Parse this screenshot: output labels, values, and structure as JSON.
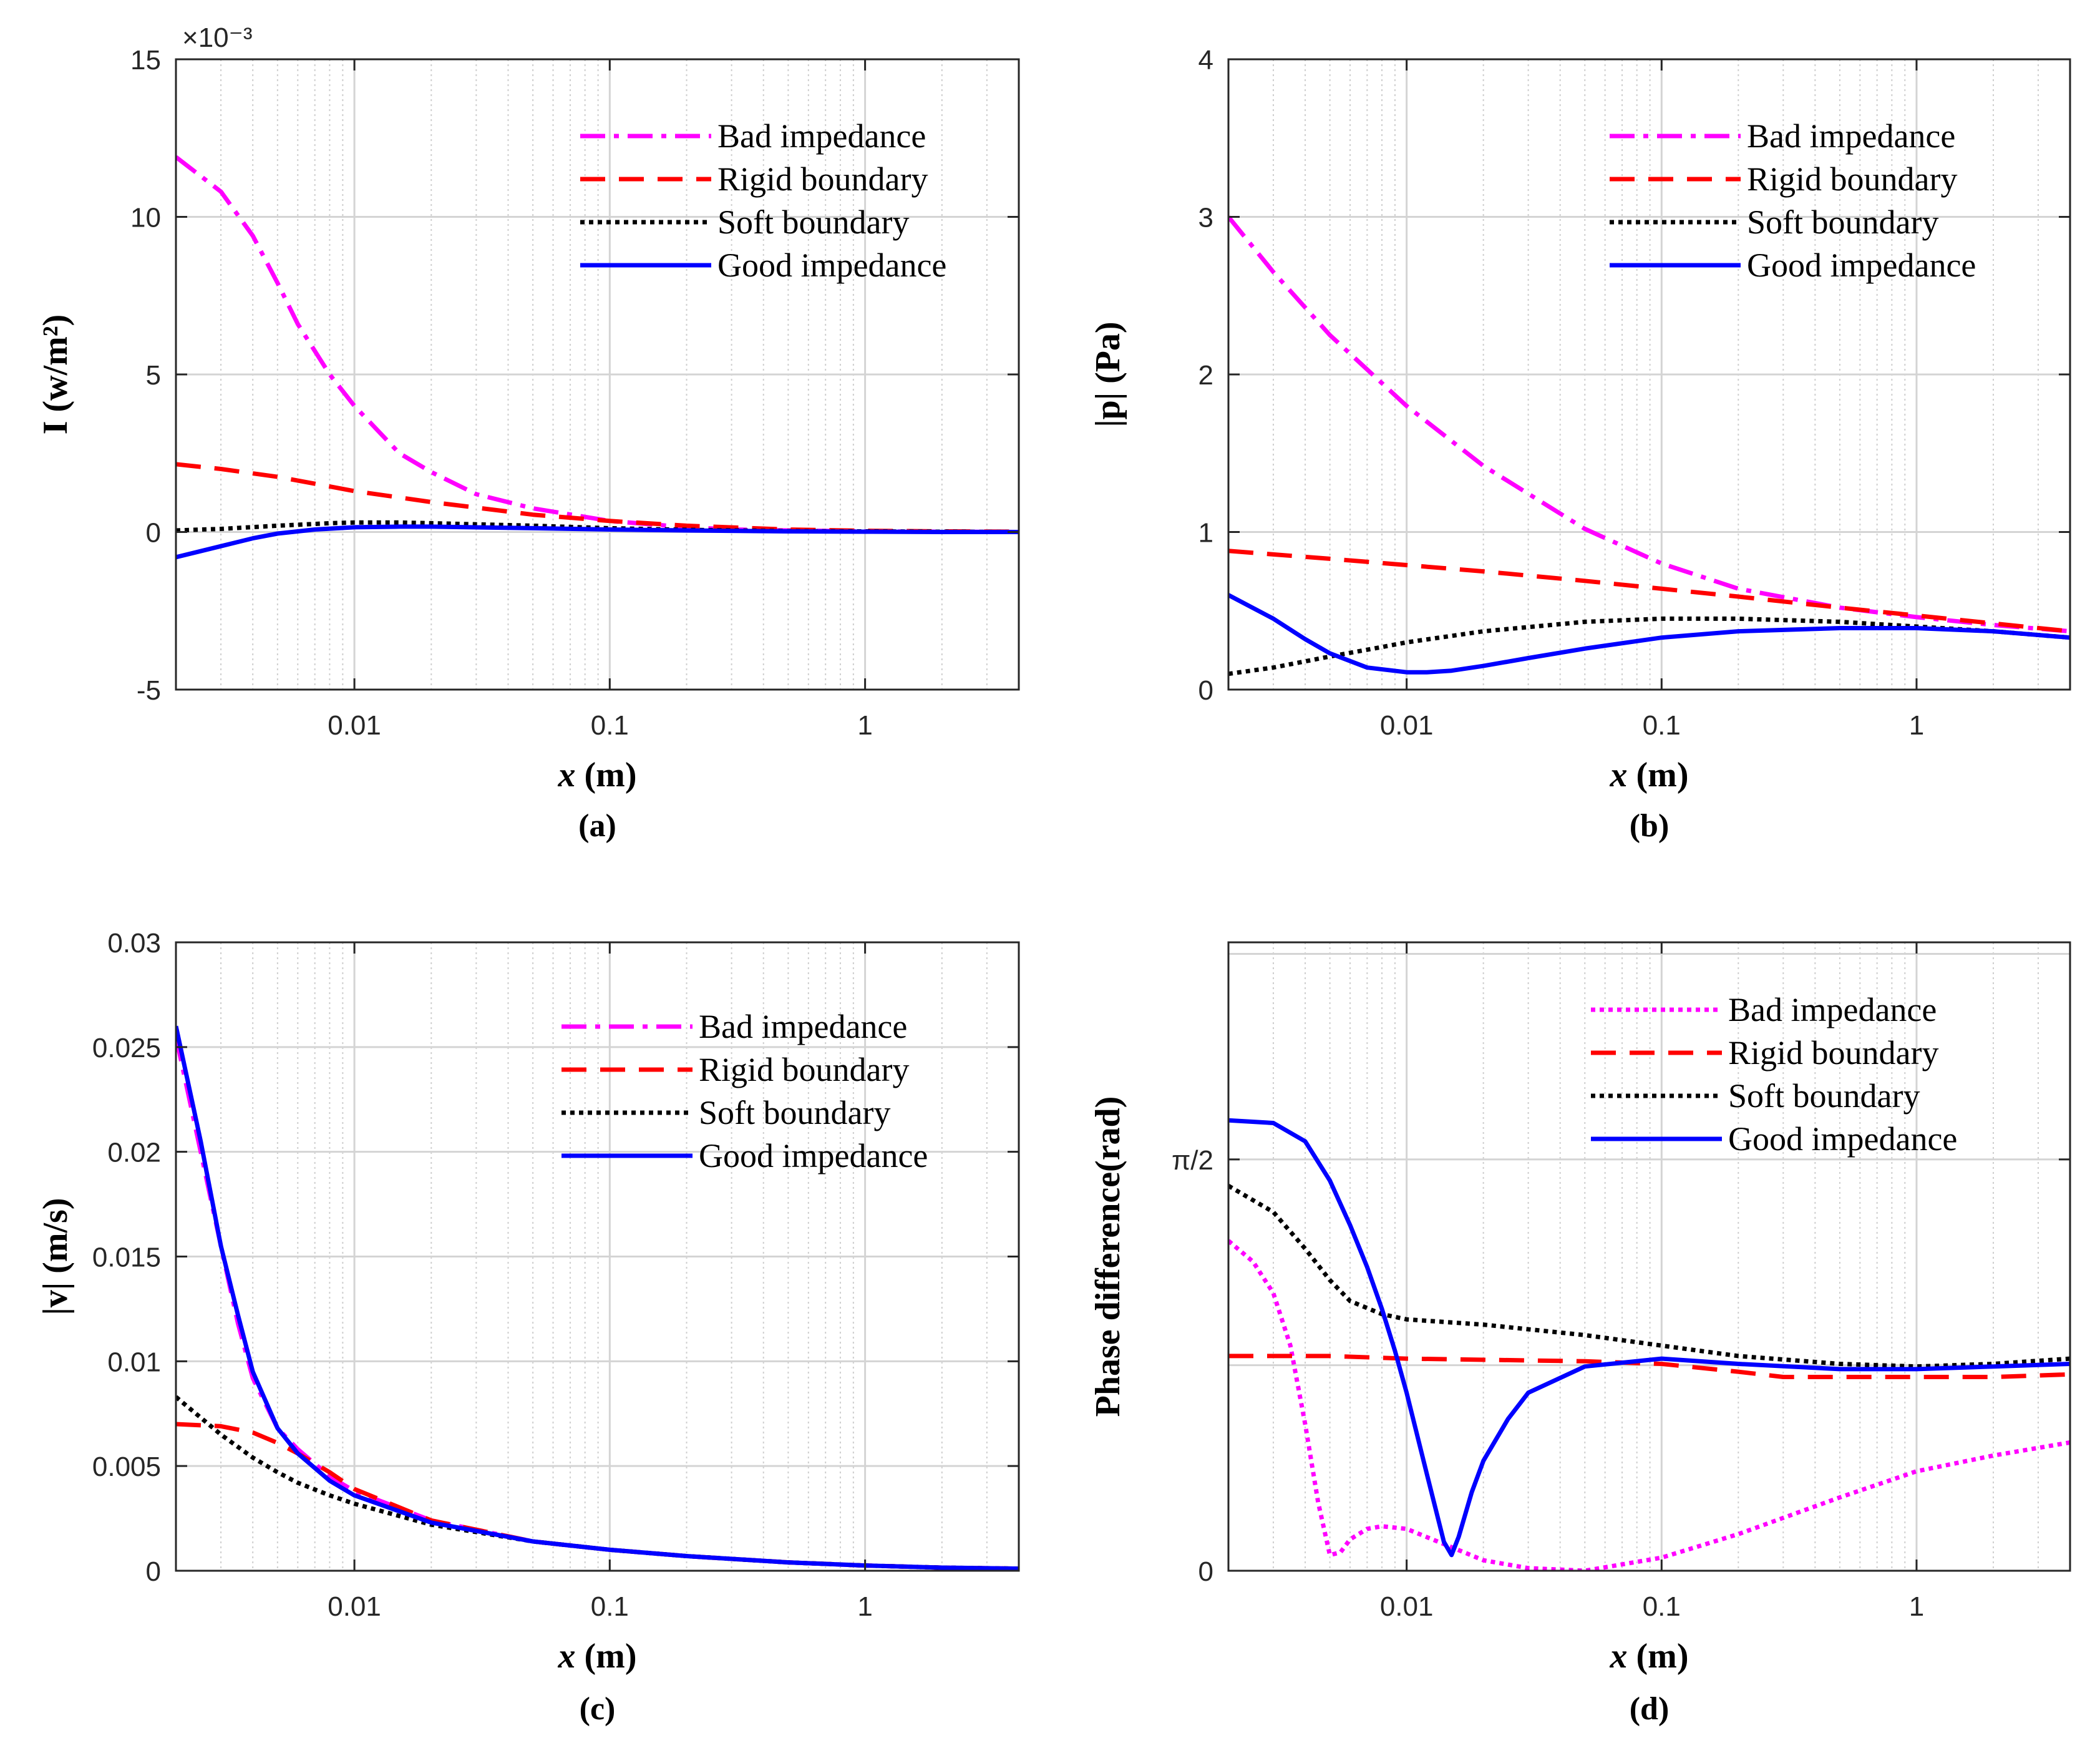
{
  "chart_data": [
    {
      "id": "a",
      "type": "line",
      "caption": "(a)",
      "xscale": "log",
      "xlim": [
        0.002,
        4
      ],
      "ylim": [
        -5,
        15
      ],
      "yticks": [
        -5,
        0,
        5,
        10,
        15
      ],
      "ytick_labels": [
        "-5",
        "0",
        "5",
        "10",
        "15"
      ],
      "xticks": [
        0.01,
        0.1,
        1
      ],
      "xtick_labels": [
        "0.01",
        "0.1",
        "1"
      ],
      "exponent_label": "×10⁻³",
      "xlabel_var": "x",
      "xlabel_unit": " (m)",
      "ylabel": "I (w/m²)",
      "legend_position": "top-right",
      "series": [
        {
          "name": "Bad impedance",
          "color": "#ff00ff",
          "style": "dashdot",
          "x": [
            0.002,
            0.003,
            0.004,
            0.005,
            0.006,
            0.008,
            0.01,
            0.015,
            0.02,
            0.03,
            0.05,
            0.1,
            0.2,
            0.3,
            0.5,
            1,
            2,
            4
          ],
          "y": [
            11.9,
            10.8,
            9.4,
            7.9,
            6.6,
            5.0,
            4.0,
            2.5,
            1.9,
            1.2,
            0.75,
            0.35,
            0.15,
            0.08,
            0.05,
            0.02,
            0.01,
            0.0
          ]
        },
        {
          "name": "Rigid boundary",
          "color": "#ff0000",
          "style": "dashed",
          "x": [
            0.002,
            0.003,
            0.005,
            0.01,
            0.02,
            0.05,
            0.1,
            0.2,
            0.5,
            1,
            2,
            4
          ],
          "y": [
            2.15,
            2.0,
            1.75,
            1.3,
            0.95,
            0.55,
            0.35,
            0.2,
            0.08,
            0.04,
            0.02,
            0.01
          ]
        },
        {
          "name": "Soft boundary",
          "color": "#000000",
          "style": "dotted",
          "x": [
            0.002,
            0.003,
            0.005,
            0.008,
            0.01,
            0.015,
            0.02,
            0.05,
            0.1,
            0.2,
            0.5,
            1,
            2,
            4
          ],
          "y": [
            0.05,
            0.1,
            0.2,
            0.28,
            0.3,
            0.3,
            0.28,
            0.2,
            0.12,
            0.07,
            0.03,
            0.02,
            0.01,
            0.0
          ]
        },
        {
          "name": "Good impedance",
          "color": "#0000ff",
          "style": "solid",
          "x": [
            0.002,
            0.003,
            0.004,
            0.005,
            0.007,
            0.01,
            0.015,
            0.02,
            0.05,
            0.1,
            0.2,
            0.5,
            1,
            2,
            4
          ],
          "y": [
            -0.8,
            -0.45,
            -0.2,
            -0.05,
            0.08,
            0.15,
            0.17,
            0.17,
            0.12,
            0.08,
            0.05,
            0.02,
            0.01,
            0.0,
            0.0
          ]
        }
      ]
    },
    {
      "id": "b",
      "type": "line",
      "caption": "(b)",
      "xscale": "log",
      "xlim": [
        0.002,
        4
      ],
      "ylim": [
        0,
        4
      ],
      "yticks": [
        0,
        1,
        2,
        3,
        4
      ],
      "ytick_labels": [
        "0",
        "1",
        "2",
        "3",
        "4"
      ],
      "xticks": [
        0.01,
        0.1,
        1
      ],
      "xtick_labels": [
        "0.01",
        "0.1",
        "1"
      ],
      "xlabel_var": "x",
      "xlabel_unit": " (m)",
      "ylabel": "|p| (Pa)",
      "legend_position": "top-right",
      "series": [
        {
          "name": "Bad impedance",
          "color": "#ff00ff",
          "style": "dashdot",
          "x": [
            0.002,
            0.003,
            0.005,
            0.01,
            0.02,
            0.05,
            0.1,
            0.2,
            0.5,
            1,
            2,
            4
          ],
          "y": [
            3.0,
            2.65,
            2.25,
            1.8,
            1.42,
            1.02,
            0.8,
            0.64,
            0.52,
            0.46,
            0.41,
            0.37
          ]
        },
        {
          "name": "Rigid boundary",
          "color": "#ff0000",
          "style": "dashed",
          "x": [
            0.002,
            0.005,
            0.01,
            0.02,
            0.05,
            0.1,
            0.2,
            0.5,
            1,
            2,
            4
          ],
          "y": [
            0.88,
            0.83,
            0.79,
            0.75,
            0.69,
            0.64,
            0.59,
            0.52,
            0.47,
            0.42,
            0.37
          ]
        },
        {
          "name": "Soft boundary",
          "color": "#000000",
          "style": "dotted",
          "x": [
            0.002,
            0.003,
            0.005,
            0.008,
            0.01,
            0.02,
            0.05,
            0.1,
            0.2,
            0.5,
            1,
            2,
            4
          ],
          "y": [
            0.1,
            0.14,
            0.21,
            0.27,
            0.3,
            0.37,
            0.43,
            0.45,
            0.45,
            0.43,
            0.4,
            0.37,
            0.33
          ]
        },
        {
          "name": "Good impedance",
          "color": "#0000ff",
          "style": "solid",
          "x": [
            0.002,
            0.003,
            0.004,
            0.005,
            0.007,
            0.01,
            0.012,
            0.015,
            0.02,
            0.03,
            0.05,
            0.1,
            0.2,
            0.5,
            1,
            2,
            4
          ],
          "y": [
            0.6,
            0.45,
            0.32,
            0.23,
            0.14,
            0.11,
            0.11,
            0.12,
            0.15,
            0.2,
            0.26,
            0.33,
            0.37,
            0.39,
            0.39,
            0.37,
            0.33
          ]
        }
      ]
    },
    {
      "id": "c",
      "type": "line",
      "caption": "(c)",
      "xscale": "log",
      "xlim": [
        0.002,
        4
      ],
      "ylim": [
        0,
        0.03
      ],
      "yticks": [
        0,
        0.005,
        0.01,
        0.015,
        0.02,
        0.025,
        0.03
      ],
      "ytick_labels": [
        "0",
        "0.005",
        "0.01",
        "0.015",
        "0.02",
        "0.025",
        "0.03"
      ],
      "xticks": [
        0.01,
        0.1,
        1
      ],
      "xtick_labels": [
        "0.01",
        "0.1",
        "1"
      ],
      "xlabel_var": "x",
      "xlabel_unit": " (m)",
      "ylabel": "|v| (m/s)",
      "legend_position": "top-right",
      "series": [
        {
          "name": "Bad impedance",
          "color": "#ff00ff",
          "style": "dashdot",
          "x": [
            0.002,
            0.0025,
            0.003,
            0.0035,
            0.004,
            0.005,
            0.006,
            0.008,
            0.01,
            0.02,
            0.05,
            0.1,
            0.2,
            0.5,
            1,
            2,
            4
          ],
          "y": [
            0.0255,
            0.02,
            0.0155,
            0.0118,
            0.0092,
            0.0068,
            0.0058,
            0.0045,
            0.0038,
            0.0024,
            0.0014,
            0.001,
            0.0007,
            0.0004,
            0.00025,
            0.00015,
            0.0001
          ]
        },
        {
          "name": "Rigid boundary",
          "color": "#ff0000",
          "style": "dashed",
          "x": [
            0.002,
            0.003,
            0.004,
            0.005,
            0.006,
            0.008,
            0.01,
            0.02,
            0.05,
            0.1,
            0.2,
            0.5,
            1,
            2,
            4
          ],
          "y": [
            0.007,
            0.0069,
            0.0066,
            0.0061,
            0.0056,
            0.0047,
            0.0039,
            0.0024,
            0.0014,
            0.001,
            0.0007,
            0.0004,
            0.00025,
            0.00015,
            0.0001
          ]
        },
        {
          "name": "Soft boundary",
          "color": "#000000",
          "style": "dotted",
          "x": [
            0.002,
            0.003,
            0.004,
            0.005,
            0.006,
            0.008,
            0.01,
            0.02,
            0.05,
            0.1,
            0.2,
            0.5,
            1,
            2,
            4
          ],
          "y": [
            0.0083,
            0.0065,
            0.0054,
            0.0047,
            0.0042,
            0.0036,
            0.0032,
            0.0022,
            0.0014,
            0.001,
            0.0007,
            0.0004,
            0.00025,
            0.00015,
            0.0001
          ]
        },
        {
          "name": "Good impedance",
          "color": "#0000ff",
          "style": "solid",
          "x": [
            0.002,
            0.0025,
            0.003,
            0.0035,
            0.004,
            0.005,
            0.006,
            0.008,
            0.01,
            0.02,
            0.05,
            0.1,
            0.2,
            0.5,
            1,
            2,
            4
          ],
          "y": [
            0.026,
            0.0205,
            0.0155,
            0.0122,
            0.0095,
            0.0068,
            0.0056,
            0.0043,
            0.0036,
            0.0023,
            0.0014,
            0.001,
            0.0007,
            0.0004,
            0.00025,
            0.00015,
            0.0001
          ]
        }
      ]
    },
    {
      "id": "d",
      "type": "line",
      "caption": "(d)",
      "xscale": "log",
      "xlim": [
        0.002,
        4
      ],
      "ylim": [
        0,
        2.4
      ],
      "yticks": [
        0,
        1.5708
      ],
      "ytick_labels": [
        "0",
        "π/2"
      ],
      "xticks": [
        0.01,
        0.1,
        1
      ],
      "xtick_labels": [
        "0.01",
        "0.1",
        "1"
      ],
      "xlabel_var": "x",
      "xlabel_unit": " (m)",
      "ylabel": "Phase difference(rad)",
      "legend_position": "top-right",
      "series": [
        {
          "name": "Bad impedance",
          "color": "#ff00ff",
          "style": "dotted",
          "x": [
            0.002,
            0.0025,
            0.003,
            0.0035,
            0.004,
            0.0045,
            0.005,
            0.0055,
            0.006,
            0.007,
            0.008,
            0.01,
            0.015,
            0.02,
            0.03,
            0.05,
            0.1,
            0.2,
            0.5,
            1,
            2,
            4
          ],
          "y": [
            1.26,
            1.18,
            1.06,
            0.86,
            0.56,
            0.26,
            0.06,
            0.07,
            0.12,
            0.16,
            0.17,
            0.16,
            0.09,
            0.04,
            0.01,
            0.0,
            0.05,
            0.14,
            0.28,
            0.38,
            0.44,
            0.49
          ]
        },
        {
          "name": "Rigid boundary",
          "color": "#ff0000",
          "style": "dashed",
          "x": [
            0.002,
            0.005,
            0.01,
            0.05,
            0.1,
            0.2,
            0.3,
            0.5,
            1,
            2,
            4
          ],
          "y": [
            0.82,
            0.82,
            0.81,
            0.8,
            0.79,
            0.76,
            0.74,
            0.74,
            0.74,
            0.74,
            0.75
          ]
        },
        {
          "name": "Soft boundary",
          "color": "#000000",
          "style": "dotted",
          "x": [
            0.002,
            0.003,
            0.004,
            0.005,
            0.006,
            0.008,
            0.01,
            0.02,
            0.05,
            0.1,
            0.2,
            0.5,
            1,
            2,
            4
          ],
          "y": [
            1.47,
            1.37,
            1.23,
            1.11,
            1.03,
            0.98,
            0.96,
            0.94,
            0.9,
            0.86,
            0.82,
            0.79,
            0.78,
            0.79,
            0.81
          ]
        },
        {
          "name": "Good impedance",
          "color": "#0000ff",
          "style": "solid",
          "x": [
            0.002,
            0.003,
            0.004,
            0.005,
            0.006,
            0.007,
            0.008,
            0.009,
            0.01,
            0.012,
            0.014,
            0.015,
            0.016,
            0.018,
            0.02,
            0.025,
            0.03,
            0.05,
            0.1,
            0.2,
            0.5,
            1,
            2,
            4
          ],
          "y": [
            1.72,
            1.71,
            1.64,
            1.49,
            1.32,
            1.16,
            1.0,
            0.84,
            0.68,
            0.37,
            0.11,
            0.06,
            0.13,
            0.3,
            0.42,
            0.58,
            0.68,
            0.78,
            0.81,
            0.79,
            0.77,
            0.77,
            0.78,
            0.79
          ]
        }
      ]
    }
  ]
}
